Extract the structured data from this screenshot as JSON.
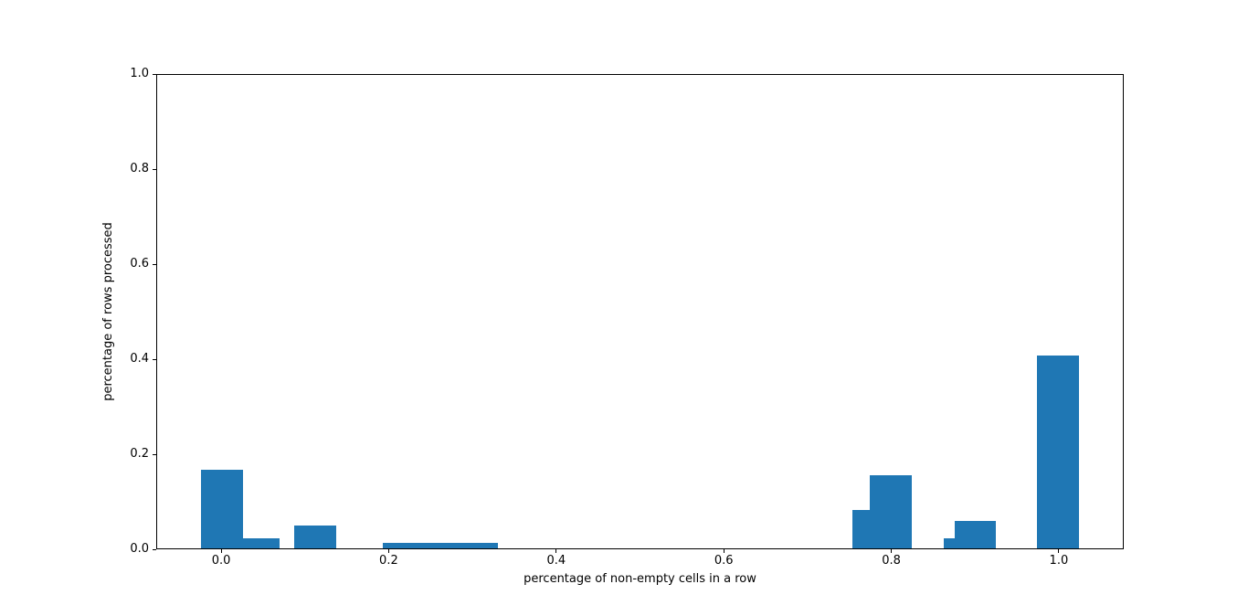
{
  "figure": {
    "background": "#ffffff",
    "title": ""
  },
  "chart_data": {
    "type": "bar",
    "title": "",
    "xlabel": "percentage of non-empty cells in a row",
    "ylabel": "percentage of rows processed",
    "xlim": [
      -0.0775,
      1.0775
    ],
    "ylim": [
      0,
      1.0
    ],
    "grid": false,
    "legend": false,
    "bar_color": "#1f77b4",
    "x_tick_values": [
      0.0,
      0.2,
      0.4,
      0.6,
      0.8,
      1.0
    ],
    "x_tick_labels": [
      "0.0",
      "0.2",
      "0.4",
      "0.6",
      "0.8",
      "1.0"
    ],
    "y_tick_values": [
      0.0,
      0.2,
      0.4,
      0.6,
      0.8,
      1.0
    ],
    "y_tick_labels": [
      "0.0",
      "0.2",
      "0.4",
      "0.6",
      "0.8",
      "1.0"
    ],
    "bars": [
      {
        "x_start": -0.024,
        "x_end": 0.026,
        "height": 0.168
      },
      {
        "x_start": 0.026,
        "x_end": 0.07,
        "height": 0.024
      },
      {
        "x_start": 0.087,
        "x_end": 0.137,
        "height": 0.05
      },
      {
        "x_start": 0.193,
        "x_end": 0.33,
        "height": 0.013
      },
      {
        "x_start": 0.753,
        "x_end": 0.774,
        "height": 0.083
      },
      {
        "x_start": 0.774,
        "x_end": 0.825,
        "height": 0.155
      },
      {
        "x_start": 0.863,
        "x_end": 0.876,
        "height": 0.023
      },
      {
        "x_start": 0.876,
        "x_end": 0.925,
        "height": 0.06
      },
      {
        "x_start": 0.974,
        "x_end": 1.024,
        "height": 0.407
      }
    ]
  }
}
